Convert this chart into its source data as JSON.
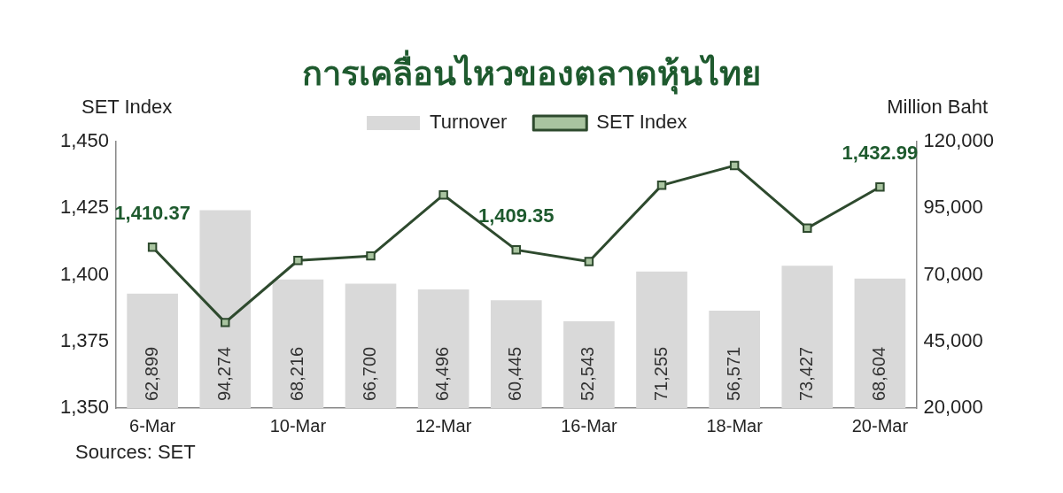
{
  "chart_data": {
    "type": "bar",
    "title": "การเคลื่อนไหวของตลาดหุ้นไทย",
    "ylabel": "SET Index",
    "y2label": "Million Baht",
    "categories": [
      "6-Mar",
      null,
      "10-Mar",
      null,
      "12-Mar",
      null,
      "16-Mar",
      null,
      "18-Mar",
      null,
      "20-Mar"
    ],
    "series": [
      {
        "name": "Turnover",
        "axis": "y2",
        "color": "#d9d9d9",
        "values": [
          62899,
          94274,
          68216,
          66700,
          64496,
          60445,
          52543,
          71255,
          56571,
          73427,
          68604
        ],
        "value_labels": [
          "62,899",
          "94,274",
          "68,216",
          "66,700",
          "64,496",
          "60,445",
          "52,543",
          "71,255",
          "56,571",
          "73,427",
          "68,604"
        ]
      },
      {
        "name": "SET Index",
        "type": "line",
        "axis": "y",
        "color": "#2e4a2e",
        "marker": "square",
        "values": [
          1410.37,
          1382.1,
          1405.4,
          1407.1,
          1430,
          1409.35,
          1405,
          1433.6,
          1441,
          1417.5,
          1432.99
        ],
        "value_labels": [
          "1,410.37",
          null,
          null,
          null,
          null,
          "1,409.35",
          null,
          null,
          null,
          null,
          "1,432.99"
        ]
      }
    ],
    "ylim": [
      1350,
      1450
    ],
    "yticks": [
      {
        "value": 1350,
        "label": "1,350"
      },
      {
        "value": 1375,
        "label": "1,375"
      },
      {
        "value": 1400,
        "label": "1,400"
      },
      {
        "value": 1425,
        "label": "1,425"
      },
      {
        "value": 1450,
        "label": "1,450"
      }
    ],
    "y2lim": [
      20000,
      120000
    ],
    "y2ticks": [
      {
        "value": 20000,
        "label": "20,000"
      },
      {
        "value": 45000,
        "label": "45,000"
      },
      {
        "value": 70000,
        "label": "70,000"
      },
      {
        "value": 95000,
        "label": "95,000"
      },
      {
        "value": 120000,
        "label": "120,000"
      }
    ],
    "grid": false,
    "legend": "top",
    "annotations": [
      "Sources: SET"
    ]
  }
}
